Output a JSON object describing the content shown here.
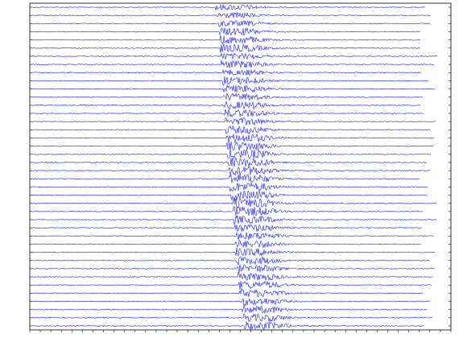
{
  "chart_data": {
    "type": "record-section",
    "color": "#1a1aff",
    "xlim": [
      0,
      100
    ],
    "xticks": [
      0,
      2.5,
      5,
      7.5,
      10,
      12.5,
      15,
      17.5,
      20,
      22.5,
      25,
      27.5,
      30,
      32.5,
      35,
      37.5,
      40,
      42.5,
      45,
      47.5,
      50,
      52.5,
      55,
      57.5,
      60,
      62.5,
      65,
      67.5,
      70,
      72.5,
      75,
      77.5,
      80,
      82.5,
      85,
      87.5,
      90,
      92.5,
      95,
      97.5,
      100
    ],
    "onsets": [
      44.0,
      44.2,
      44.9,
      45.1,
      45.3,
      45.3,
      45.5,
      45.5,
      45.7,
      45.7,
      45.9,
      45.9,
      46.1,
      46.1,
      46.3,
      46.5,
      46.7,
      46.8,
      47.0,
      47.2,
      47.2,
      47.4,
      47.6,
      47.8,
      48.0,
      48.2,
      48.4,
      48.6,
      48.8,
      48.9,
      48.9,
      49.1,
      49.3,
      49.5,
      49.7,
      49.9,
      50.1,
      50.3,
      50.7,
      50.9
    ],
    "amplitudes": [
      3,
      3,
      3,
      4,
      4,
      4,
      3,
      4,
      3,
      4,
      4,
      4,
      4,
      4,
      4,
      4,
      5,
      5,
      5,
      5,
      5,
      5,
      5,
      5,
      5,
      5,
      4,
      4,
      4,
      4,
      4,
      4,
      4,
      4,
      4,
      4,
      4,
      4,
      4,
      4
    ]
  }
}
